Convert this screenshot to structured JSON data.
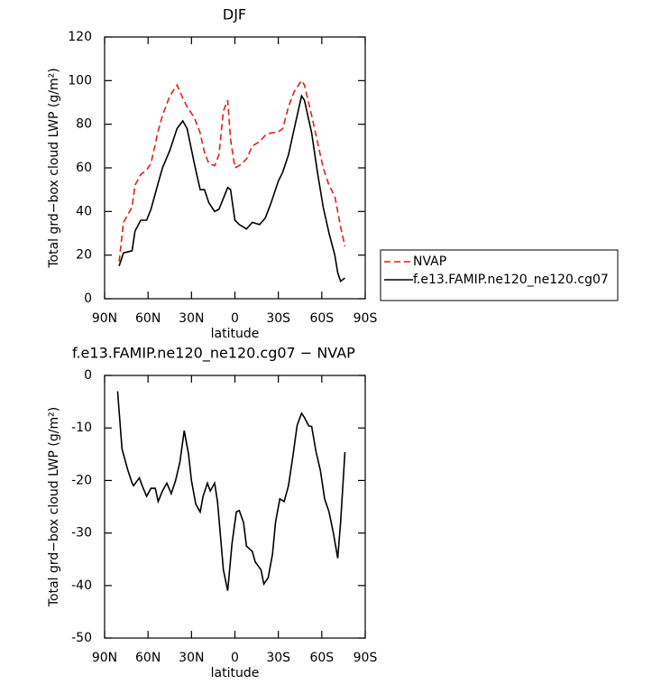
{
  "chart_data": [
    {
      "type": "line",
      "title": "DJF",
      "xlabel": "latitude",
      "ylabel": "Total grd−box cloud LWP (g/m²)",
      "xlim": [
        90,
        -90
      ],
      "ylim": [
        0,
        120
      ],
      "xticks": [
        {
          "value": 90,
          "label": "90N"
        },
        {
          "value": 60,
          "label": "60N"
        },
        {
          "value": 30,
          "label": "30N"
        },
        0,
        {
          "value": -30,
          "label": "30S"
        },
        {
          "value": -60,
          "label": "60S"
        },
        {
          "value": -90,
          "label": "90S"
        }
      ],
      "yticks": [
        0,
        20,
        40,
        60,
        80,
        100,
        120
      ],
      "legend": "right",
      "x": [
        80,
        77,
        71,
        69,
        65,
        61,
        58,
        53,
        50,
        45,
        40,
        36,
        33,
        28,
        24,
        21,
        18,
        14,
        11,
        8,
        5,
        3,
        0,
        -3,
        -8,
        -12,
        -17,
        -21,
        -25,
        -30,
        -33,
        -37,
        -41,
        -46,
        -48,
        -53,
        -57,
        -61,
        -65,
        -69,
        -71,
        -73,
        -76
      ],
      "series": [
        {
          "name": "NVAP",
          "color": "#e0201b",
          "line_style": "dashed",
          "values": [
            17,
            35,
            42,
            52,
            57,
            59,
            62,
            77,
            84,
            93,
            98,
            92,
            88,
            83,
            76,
            67,
            62,
            61,
            66,
            86,
            91,
            73,
            60,
            61,
            64,
            70,
            72,
            75,
            76,
            76.5,
            78,
            88,
            95,
            100,
            98,
            84,
            72,
            60,
            52,
            47,
            40,
            33,
            24
          ]
        },
        {
          "name": "f.e13.FAMIP.ne120_ne120.cg07",
          "color": "#000000",
          "line_style": "solid",
          "values": [
            15,
            21,
            22,
            31,
            36,
            36,
            41,
            53,
            60,
            68,
            78,
            81.5,
            78,
            62,
            50,
            50,
            44,
            40,
            41,
            46,
            51,
            50,
            36,
            34,
            32,
            35,
            34,
            37,
            44,
            54,
            58,
            66,
            78,
            93,
            91,
            76,
            58,
            42,
            30,
            20,
            12,
            8,
            9.5
          ]
        }
      ]
    },
    {
      "type": "line",
      "title": "f.e13.FAMIP.ne120_ne120.cg07 − NVAP",
      "xlabel": "latitude",
      "ylabel": "Total grd−box cloud LWP (g/m²)",
      "xlim": [
        90,
        -90
      ],
      "ylim": [
        -50,
        0
      ],
      "xticks": [
        {
          "value": 90,
          "label": "90N"
        },
        {
          "value": 60,
          "label": "60N"
        },
        {
          "value": 30,
          "label": "30N"
        },
        0,
        {
          "value": -30,
          "label": "30S"
        },
        {
          "value": -60,
          "label": "60S"
        },
        {
          "value": -90,
          "label": "90S"
        }
      ],
      "yticks": [
        -50,
        -40,
        -30,
        -20,
        -10,
        0
      ],
      "color": "#000000",
      "x": [
        81,
        78,
        74,
        71,
        70,
        66,
        64,
        61,
        58,
        55,
        53,
        50,
        47,
        44,
        41,
        38,
        35,
        32,
        30,
        27,
        24,
        22,
        19,
        17,
        14,
        12,
        8,
        5,
        2,
        -1,
        -3,
        -6,
        -8,
        -12,
        -14,
        -18,
        -20,
        -23,
        -26,
        -28,
        -31,
        -34,
        -37,
        -40,
        -43,
        -46,
        -48,
        -51,
        -53,
        -56,
        -59,
        -62,
        -65,
        -68,
        -71,
        -73,
        -76
      ],
      "values": [
        -3,
        -14,
        -18,
        -20.5,
        -21,
        -19.5,
        -21,
        -23,
        -21.5,
        -21.5,
        -24,
        -22,
        -20.5,
        -22.5,
        -20,
        -16.5,
        -10.5,
        -15,
        -20,
        -24.5,
        -26,
        -23,
        -20.5,
        -22,
        -20.5,
        -24,
        -37,
        -41,
        -32,
        -26,
        -25.7,
        -28,
        -32.5,
        -33.5,
        -35.5,
        -37,
        -39.7,
        -38.5,
        -34,
        -28,
        -23.5,
        -24,
        -21,
        -15.5,
        -9.5,
        -7.2,
        -8,
        -9.6,
        -9.7,
        -14.5,
        -18,
        -23.5,
        -26,
        -30,
        -34.8,
        -28,
        -14.6
      ]
    }
  ]
}
